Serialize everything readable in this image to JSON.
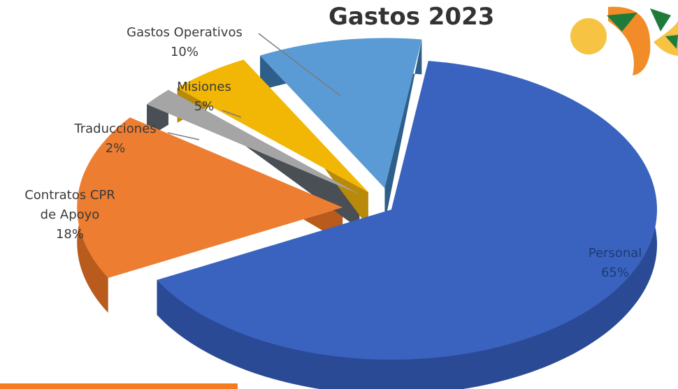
{
  "chart_data": {
    "type": "pie",
    "title": "Gastos 2023",
    "slices": [
      {
        "label": "Personal",
        "value": 65,
        "value_label": "65%",
        "color": "#3a63c0",
        "side_color": "#2a4a95"
      },
      {
        "label": "Contratos CPR de Apoyo",
        "label_lines": [
          "Contratos CPR",
          "de Apoyo"
        ],
        "value": 18,
        "value_label": "18%",
        "color": "#ed7d31",
        "side_color": "#b85b1c"
      },
      {
        "label": "Traducciones",
        "value": 2,
        "value_label": "2%",
        "color": "#a5a5a5",
        "side_color": "#4a4f55"
      },
      {
        "label": "Misiones",
        "value": 5,
        "value_label": "5%",
        "color": "#f2b705",
        "side_color": "#b9890a"
      },
      {
        "label": "Gastos Operativos",
        "value": 10,
        "value_label": "10%",
        "color": "#5b9bd5",
        "side_color": "#2e5f8a"
      }
    ],
    "legend": "none",
    "style": "3d-exploded"
  },
  "logo": {
    "name": "orange-green-yellow-logo-icon",
    "colors": [
      "#f28c28",
      "#1e7b3a",
      "#f6c343"
    ]
  },
  "accent_bar_color": "#f47b20"
}
